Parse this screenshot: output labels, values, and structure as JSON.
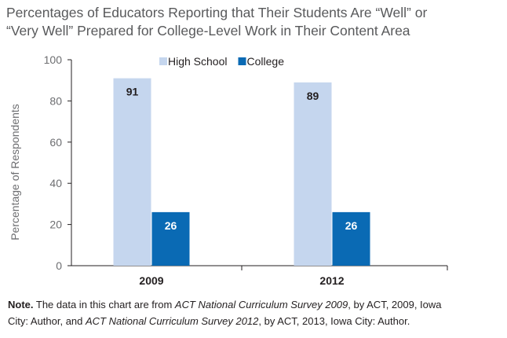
{
  "title_lines": [
    "Percentages of Educators Reporting that Their Students Are “Well” or",
    "“Very Well” Prepared for College-Level Work in Their Content Area"
  ],
  "chart_data": {
    "type": "bar",
    "title": "Percentages of Educators Reporting that Their Students Are “Well” or “Very Well” Prepared for College-Level Work in Their Content Area",
    "categories": [
      "2009",
      "2012"
    ],
    "series": [
      {
        "name": "High School",
        "values": [
          91,
          89
        ],
        "color": "#c5d6ee"
      },
      {
        "name": "College",
        "values": [
          26,
          26
        ],
        "color": "#0a6ab4"
      }
    ],
    "xlabel": "",
    "ylabel": "Percentage of Respondents",
    "ylim": [
      0,
      100
    ],
    "yticks": [
      0,
      20,
      40,
      60,
      80,
      100
    ],
    "grid": false,
    "legend": "top",
    "data_labels": true
  },
  "note": {
    "label": "Note.",
    "line1": {
      "seg1": " The data in this chart are from ",
      "ital1": "ACT National Curriculum Survey 2009",
      "seg2": ", by ACT, 2009, Iowa"
    },
    "line2": {
      "seg1": "City: Author, and ",
      "ital2": "ACT National Curriculum Survey 2012",
      "seg2": ", by ACT, 2013, Iowa City: Author."
    }
  }
}
